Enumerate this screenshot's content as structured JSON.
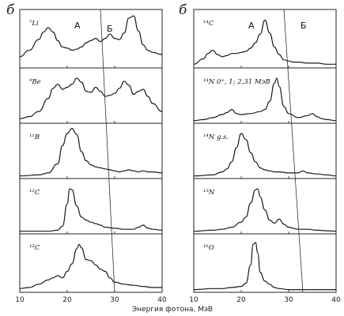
{
  "figure": {
    "xlabel": "Энергия фотона,  МэВ"
  },
  "chart_data": [
    {
      "type": "line",
      "panel_label": "б",
      "xlim": [
        10,
        40
      ],
      "x_ticks": [
        10,
        20,
        30,
        40
      ],
      "region_labels": [
        "А",
        "Б"
      ],
      "boundary_line": {
        "x_top": 27,
        "x_bottom": 30
      },
      "panels": [
        {
          "label": "⁷Li",
          "x": [
            10,
            12,
            14,
            15,
            16,
            17,
            18,
            19,
            20,
            21,
            22,
            23,
            24,
            25,
            26,
            27,
            28,
            29,
            30,
            31,
            32,
            33,
            34,
            35,
            36,
            37,
            38,
            40
          ],
          "y": [
            0.18,
            0.3,
            0.5,
            0.64,
            0.72,
            0.64,
            0.48,
            0.36,
            0.34,
            0.3,
            0.32,
            0.36,
            0.44,
            0.48,
            0.52,
            0.46,
            0.52,
            0.6,
            0.52,
            0.5,
            0.62,
            0.9,
            0.94,
            0.66,
            0.4,
            0.3,
            0.26,
            0.22
          ]
        },
        {
          "label": "⁹Be",
          "x": [
            10,
            12,
            14,
            16,
            17,
            18,
            19,
            20,
            21,
            22,
            23,
            24,
            25,
            26,
            27,
            28,
            29,
            30,
            31,
            32,
            33,
            34,
            35,
            36,
            37,
            38,
            40
          ],
          "y": [
            0.06,
            0.1,
            0.2,
            0.46,
            0.66,
            0.74,
            0.64,
            0.68,
            0.74,
            0.86,
            0.78,
            0.6,
            0.58,
            0.68,
            0.6,
            0.5,
            0.52,
            0.56,
            0.66,
            0.8,
            0.72,
            0.54,
            0.6,
            0.64,
            0.5,
            0.36,
            0.2
          ]
        },
        {
          "label": "¹¹B",
          "x": [
            10,
            14,
            16,
            18,
            19,
            20,
            21,
            22,
            23,
            24,
            25,
            26,
            27,
            28,
            29,
            30,
            31,
            32,
            33,
            34,
            35,
            36,
            37,
            38,
            40
          ],
          "y": [
            0.02,
            0.04,
            0.08,
            0.26,
            0.62,
            0.86,
            0.96,
            0.84,
            0.5,
            0.32,
            0.24,
            0.2,
            0.18,
            0.16,
            0.14,
            0.12,
            0.1,
            0.12,
            0.14,
            0.12,
            0.1,
            0.12,
            0.1,
            0.1,
            0.08
          ]
        },
        {
          "label": "¹²C",
          "x": [
            10,
            16,
            18,
            19,
            20,
            20.5,
            21,
            22,
            23,
            24,
            25,
            26,
            27,
            28,
            30,
            32,
            34,
            35,
            36,
            37,
            38,
            40
          ],
          "y": [
            0.02,
            0.02,
            0.04,
            0.12,
            0.56,
            0.86,
            0.84,
            0.52,
            0.3,
            0.24,
            0.2,
            0.17,
            0.14,
            0.1,
            0.08,
            0.06,
            0.06,
            0.1,
            0.14,
            0.08,
            0.06,
            0.04
          ]
        },
        {
          "label": "¹³C",
          "x": [
            10,
            12,
            14,
            16,
            17,
            18,
            19,
            20,
            21,
            22,
            22.5,
            23,
            24,
            25,
            26,
            27,
            28,
            29,
            30,
            32,
            34,
            36,
            38,
            40
          ],
          "y": [
            0.04,
            0.06,
            0.12,
            0.2,
            0.24,
            0.28,
            0.24,
            0.36,
            0.5,
            0.78,
            0.86,
            0.8,
            0.58,
            0.56,
            0.48,
            0.4,
            0.36,
            0.24,
            0.16,
            0.12,
            0.1,
            0.08,
            0.06,
            0.06
          ]
        }
      ]
    },
    {
      "type": "line",
      "panel_label": "б",
      "xlim": [
        10,
        40
      ],
      "x_ticks": [
        10,
        20,
        30,
        40
      ],
      "region_labels": [
        "А",
        "Б"
      ],
      "boundary_line": {
        "x_top": 29,
        "x_bottom": 33
      },
      "panels": [
        {
          "label": "¹⁴C",
          "x": [
            10,
            12,
            13,
            14,
            15,
            16,
            17,
            18,
            19,
            20,
            21,
            22,
            23,
            24,
            25,
            26,
            27,
            28,
            29,
            30,
            31,
            32,
            34,
            36,
            38,
            40
          ],
          "y": [
            0.04,
            0.14,
            0.24,
            0.3,
            0.22,
            0.18,
            0.2,
            0.24,
            0.24,
            0.26,
            0.28,
            0.34,
            0.44,
            0.6,
            0.86,
            0.62,
            0.36,
            0.22,
            0.12,
            0.1,
            0.08,
            0.08,
            0.06,
            0.06,
            0.04,
            0.04
          ]
        },
        {
          "label": "¹⁴N 0⁺, 1; 2,31 МэВ",
          "x": [
            10,
            12,
            14,
            16,
            17,
            18,
            19,
            20,
            22,
            24,
            25,
            26,
            27,
            27.5,
            28,
            29,
            30,
            32,
            34,
            35,
            36,
            37,
            38,
            40
          ],
          "y": [
            0.02,
            0.04,
            0.08,
            0.14,
            0.18,
            0.24,
            0.16,
            0.14,
            0.16,
            0.2,
            0.24,
            0.4,
            0.76,
            0.86,
            0.7,
            0.3,
            0.16,
            0.08,
            0.12,
            0.16,
            0.1,
            0.06,
            0.04,
            0.02
          ]
        },
        {
          "label": "¹⁴N g.s.",
          "x": [
            10,
            14,
            16,
            17,
            18,
            19,
            20,
            21,
            22,
            23,
            24,
            25,
            26,
            27,
            28,
            30,
            32,
            33,
            34,
            36,
            38,
            40
          ],
          "y": [
            0.02,
            0.04,
            0.1,
            0.16,
            0.3,
            0.58,
            0.86,
            0.74,
            0.48,
            0.3,
            0.18,
            0.14,
            0.12,
            0.1,
            0.1,
            0.08,
            0.08,
            0.12,
            0.08,
            0.06,
            0.04,
            0.02
          ]
        },
        {
          "label": "¹⁵N",
          "x": [
            10,
            14,
            16,
            18,
            20,
            21,
            22,
            23,
            23.5,
            24,
            25,
            26,
            27,
            28,
            29,
            30,
            32,
            34,
            36,
            38,
            40
          ],
          "y": [
            0.02,
            0.04,
            0.06,
            0.1,
            0.2,
            0.3,
            0.58,
            0.84,
            0.86,
            0.7,
            0.44,
            0.24,
            0.18,
            0.26,
            0.16,
            0.1,
            0.06,
            0.06,
            0.04,
            0.03,
            0.02
          ]
        },
        {
          "label": "¹⁶O",
          "x": [
            10,
            14,
            16,
            18,
            20,
            21,
            22,
            22.5,
            23,
            23.5,
            24,
            25,
            26,
            27,
            28,
            30,
            34,
            38,
            40
          ],
          "y": [
            0.02,
            0.04,
            0.04,
            0.06,
            0.08,
            0.14,
            0.48,
            0.86,
            0.9,
            0.7,
            0.34,
            0.18,
            0.12,
            0.06,
            0.04,
            0.02,
            0.02,
            0.02,
            0.02
          ]
        }
      ]
    }
  ]
}
